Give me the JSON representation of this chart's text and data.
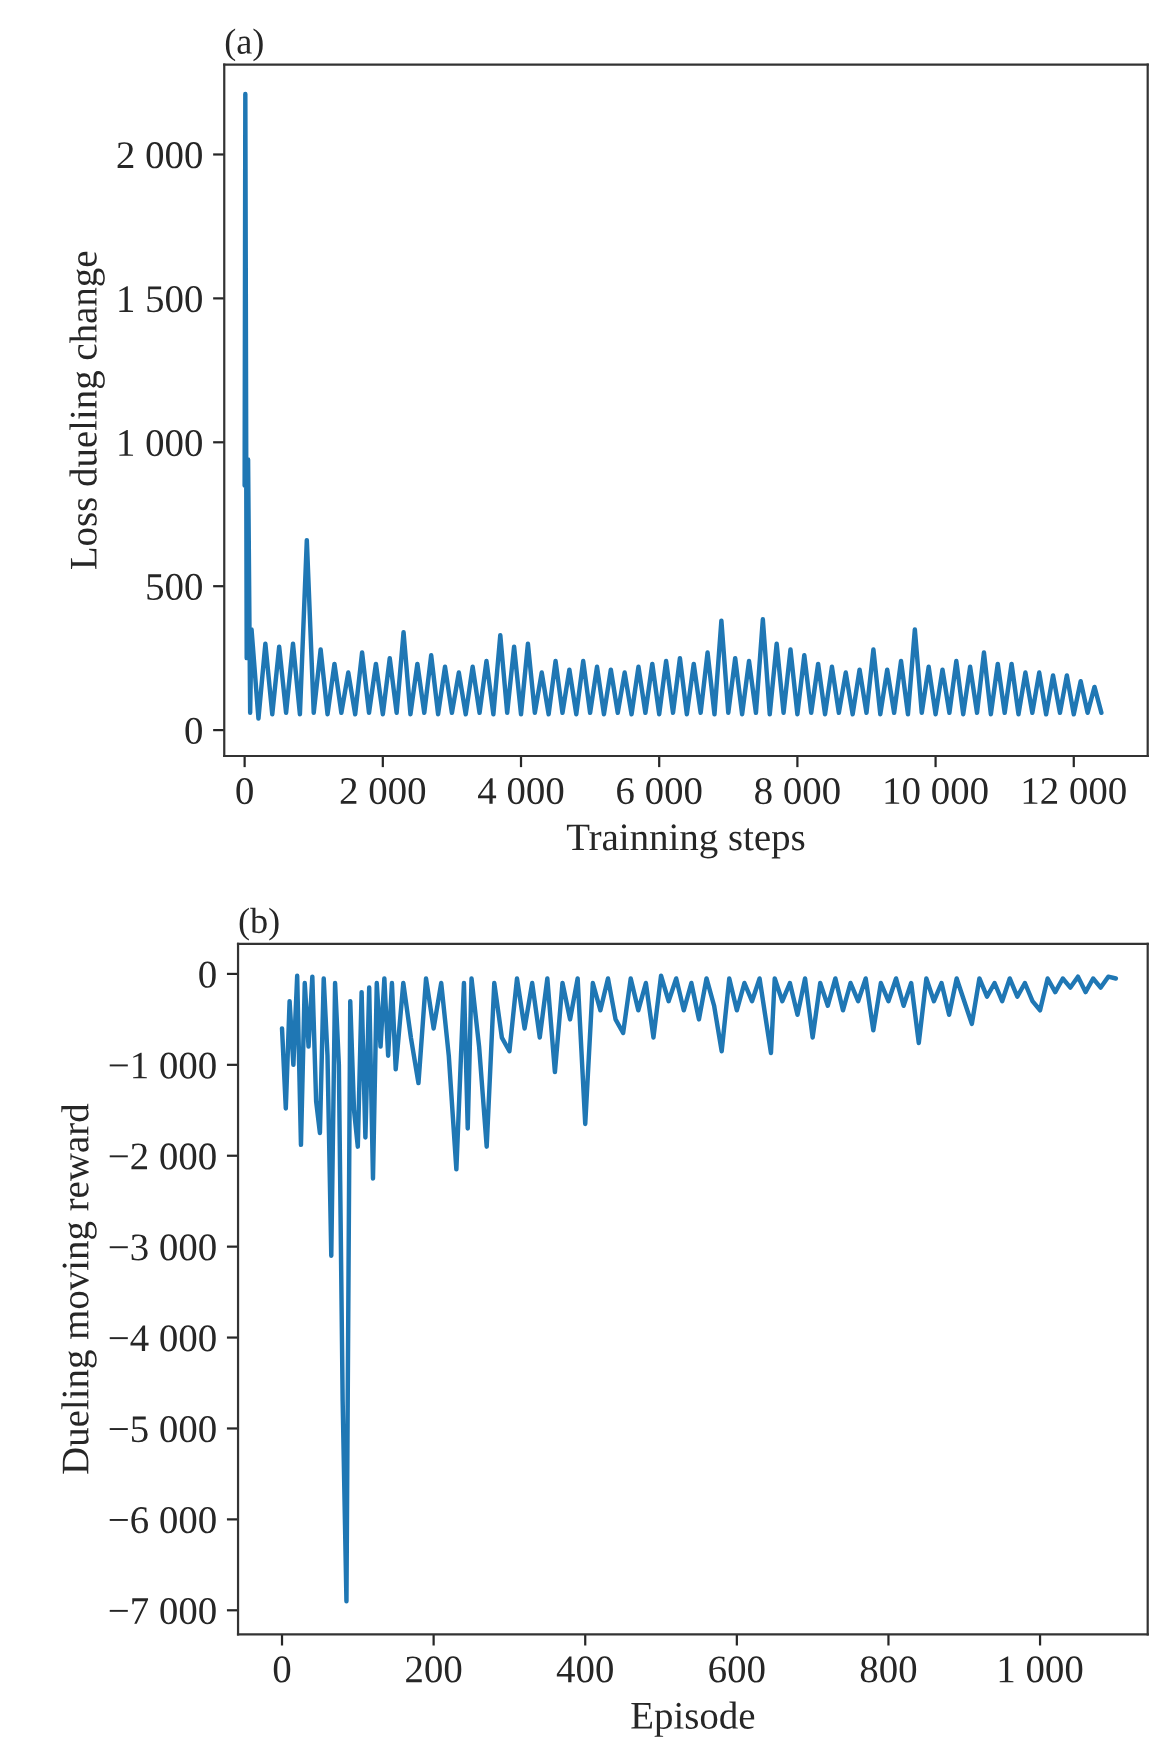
{
  "chart_data": [
    {
      "type": "line",
      "title": "(a)",
      "xlabel": "Trainning steps",
      "ylabel": "Loss dueling change",
      "grid": false,
      "legend": false,
      "xlim": [
        -295,
        13070
      ],
      "ylim": [
        -90,
        2312
      ],
      "xticks": [
        0,
        {
          "value": 2000,
          "label": "2 000"
        },
        {
          "value": 4000,
          "label": "4 000"
        },
        {
          "value": 6000,
          "label": "6 000"
        },
        {
          "value": 8000,
          "label": "8 000"
        },
        {
          "value": 10000,
          "label": "10 000"
        },
        {
          "value": 12000,
          "label": "12 000"
        }
      ],
      "yticks": [
        0,
        500,
        {
          "value": 1000,
          "label": "1 000"
        },
        {
          "value": 1500,
          "label": "1 500"
        },
        {
          "value": 2000,
          "label": "2 000"
        }
      ],
      "series": [
        {
          "color": "#1f77b4",
          "x": [
            0,
            10,
            30,
            50,
            80,
            100,
            200,
            300,
            400,
            500,
            600,
            700,
            800,
            900,
            1000,
            1100,
            1200,
            1300,
            1400,
            1500,
            1600,
            1700,
            1800,
            1900,
            2000,
            2100,
            2200,
            2300,
            2400,
            2500,
            2600,
            2700,
            2800,
            2900,
            3000,
            3100,
            3200,
            3300,
            3400,
            3500,
            3600,
            3700,
            3800,
            3900,
            4000,
            4100,
            4200,
            4300,
            4400,
            4500,
            4600,
            4700,
            4800,
            4900,
            5000,
            5100,
            5200,
            5300,
            5400,
            5500,
            5600,
            5700,
            5800,
            5900,
            6000,
            6100,
            6200,
            6300,
            6400,
            6500,
            6600,
            6700,
            6800,
            6900,
            7000,
            7100,
            7200,
            7300,
            7400,
            7500,
            7600,
            7700,
            7800,
            7900,
            8000,
            8100,
            8200,
            8300,
            8400,
            8500,
            8600,
            8700,
            8800,
            8900,
            9000,
            9100,
            9200,
            9300,
            9400,
            9500,
            9600,
            9700,
            9800,
            9900,
            10000,
            10100,
            10200,
            10300,
            10400,
            10500,
            10600,
            10700,
            10800,
            10900,
            11000,
            11100,
            11200,
            11300,
            11400,
            11500,
            11600,
            11700,
            11800,
            11900,
            12000,
            12100,
            12200,
            12300,
            12400
          ],
          "values": [
            850,
            2210,
            250,
            940,
            60,
            350,
            40,
            300,
            55,
            290,
            60,
            300,
            55,
            660,
            60,
            280,
            55,
            230,
            60,
            200,
            55,
            270,
            60,
            230,
            55,
            250,
            60,
            340,
            55,
            230,
            60,
            260,
            55,
            220,
            60,
            200,
            55,
            220,
            60,
            240,
            55,
            330,
            60,
            290,
            55,
            300,
            60,
            200,
            55,
            240,
            60,
            210,
            55,
            240,
            60,
            220,
            55,
            210,
            60,
            200,
            55,
            220,
            60,
            230,
            55,
            240,
            60,
            250,
            55,
            230,
            60,
            270,
            55,
            380,
            60,
            250,
            55,
            240,
            60,
            385,
            55,
            300,
            60,
            280,
            55,
            260,
            60,
            230,
            55,
            220,
            60,
            200,
            55,
            210,
            60,
            280,
            55,
            210,
            60,
            240,
            55,
            350,
            60,
            220,
            55,
            210,
            60,
            240,
            55,
            220,
            60,
            270,
            55,
            230,
            60,
            230,
            55,
            200,
            60,
            200,
            55,
            190,
            60,
            190,
            55,
            170,
            60,
            150,
            60
          ]
        }
      ]
    },
    {
      "type": "line",
      "title": "(b)",
      "xlabel": "Episode",
      "ylabel": "Dueling moving reward",
      "grid": false,
      "legend": false,
      "xlim": [
        -58,
        1142
      ],
      "ylim": [
        -7265,
        330
      ],
      "xticks": [
        0,
        200,
        400,
        600,
        800,
        {
          "value": 1000,
          "label": "1 000"
        }
      ],
      "yticks": [
        {
          "value": -7000,
          "label": "−7 000"
        },
        {
          "value": -6000,
          "label": "−6 000"
        },
        {
          "value": -5000,
          "label": "−5 000"
        },
        {
          "value": -4000,
          "label": "−4 000"
        },
        {
          "value": -3000,
          "label": "−3 000"
        },
        {
          "value": -2000,
          "label": "−2 000"
        },
        {
          "value": -1000,
          "label": "−1 000"
        },
        0
      ],
      "series": [
        {
          "color": "#1f77b4",
          "x": [
            0,
            5,
            10,
            15,
            20,
            25,
            30,
            35,
            40,
            45,
            50,
            55,
            60,
            65,
            70,
            75,
            80,
            85,
            90,
            95,
            100,
            105,
            110,
            115,
            120,
            125,
            130,
            135,
            140,
            145,
            150,
            160,
            170,
            180,
            190,
            200,
            210,
            220,
            230,
            240,
            245,
            250,
            260,
            270,
            280,
            290,
            300,
            310,
            320,
            330,
            340,
            350,
            360,
            370,
            380,
            390,
            400,
            410,
            420,
            430,
            440,
            450,
            460,
            470,
            480,
            490,
            500,
            510,
            520,
            530,
            540,
            550,
            560,
            570,
            580,
            590,
            600,
            610,
            620,
            630,
            645,
            650,
            660,
            670,
            680,
            690,
            700,
            710,
            720,
            730,
            740,
            750,
            760,
            770,
            780,
            790,
            800,
            810,
            820,
            830,
            840,
            850,
            860,
            870,
            880,
            890,
            900,
            910,
            920,
            930,
            940,
            950,
            960,
            970,
            980,
            990,
            1000,
            1010,
            1020,
            1030,
            1040,
            1050,
            1060,
            1070,
            1080,
            1090,
            1100
          ],
          "values": [
            -600,
            -1480,
            -300,
            -1000,
            -20,
            -1880,
            -100,
            -800,
            -30,
            -1400,
            -1750,
            -50,
            -900,
            -3100,
            -100,
            -1000,
            -4700,
            -6900,
            -300,
            -1500,
            -1900,
            -200,
            -1800,
            -150,
            -2250,
            -100,
            -800,
            -50,
            -900,
            -100,
            -1050,
            -100,
            -700,
            -1200,
            -50,
            -600,
            -100,
            -900,
            -2150,
            -100,
            -1700,
            -50,
            -800,
            -1900,
            -100,
            -700,
            -850,
            -50,
            -600,
            -100,
            -700,
            -50,
            -1080,
            -100,
            -500,
            -50,
            -1650,
            -100,
            -400,
            -50,
            -500,
            -650,
            -50,
            -400,
            -100,
            -700,
            -20,
            -300,
            -50,
            -400,
            -100,
            -500,
            -50,
            -350,
            -850,
            -50,
            -400,
            -100,
            -300,
            -50,
            -870,
            -50,
            -300,
            -100,
            -450,
            -50,
            -700,
            -100,
            -350,
            -50,
            -400,
            -100,
            -300,
            -50,
            -620,
            -100,
            -300,
            -50,
            -350,
            -100,
            -760,
            -50,
            -300,
            -100,
            -450,
            -50,
            -300,
            -550,
            -50,
            -250,
            -100,
            -300,
            -50,
            -250,
            -100,
            -300,
            -400,
            -50,
            -200,
            -50,
            -150,
            -30,
            -200,
            -50,
            -150,
            -30,
            -50
          ]
        }
      ]
    }
  ]
}
